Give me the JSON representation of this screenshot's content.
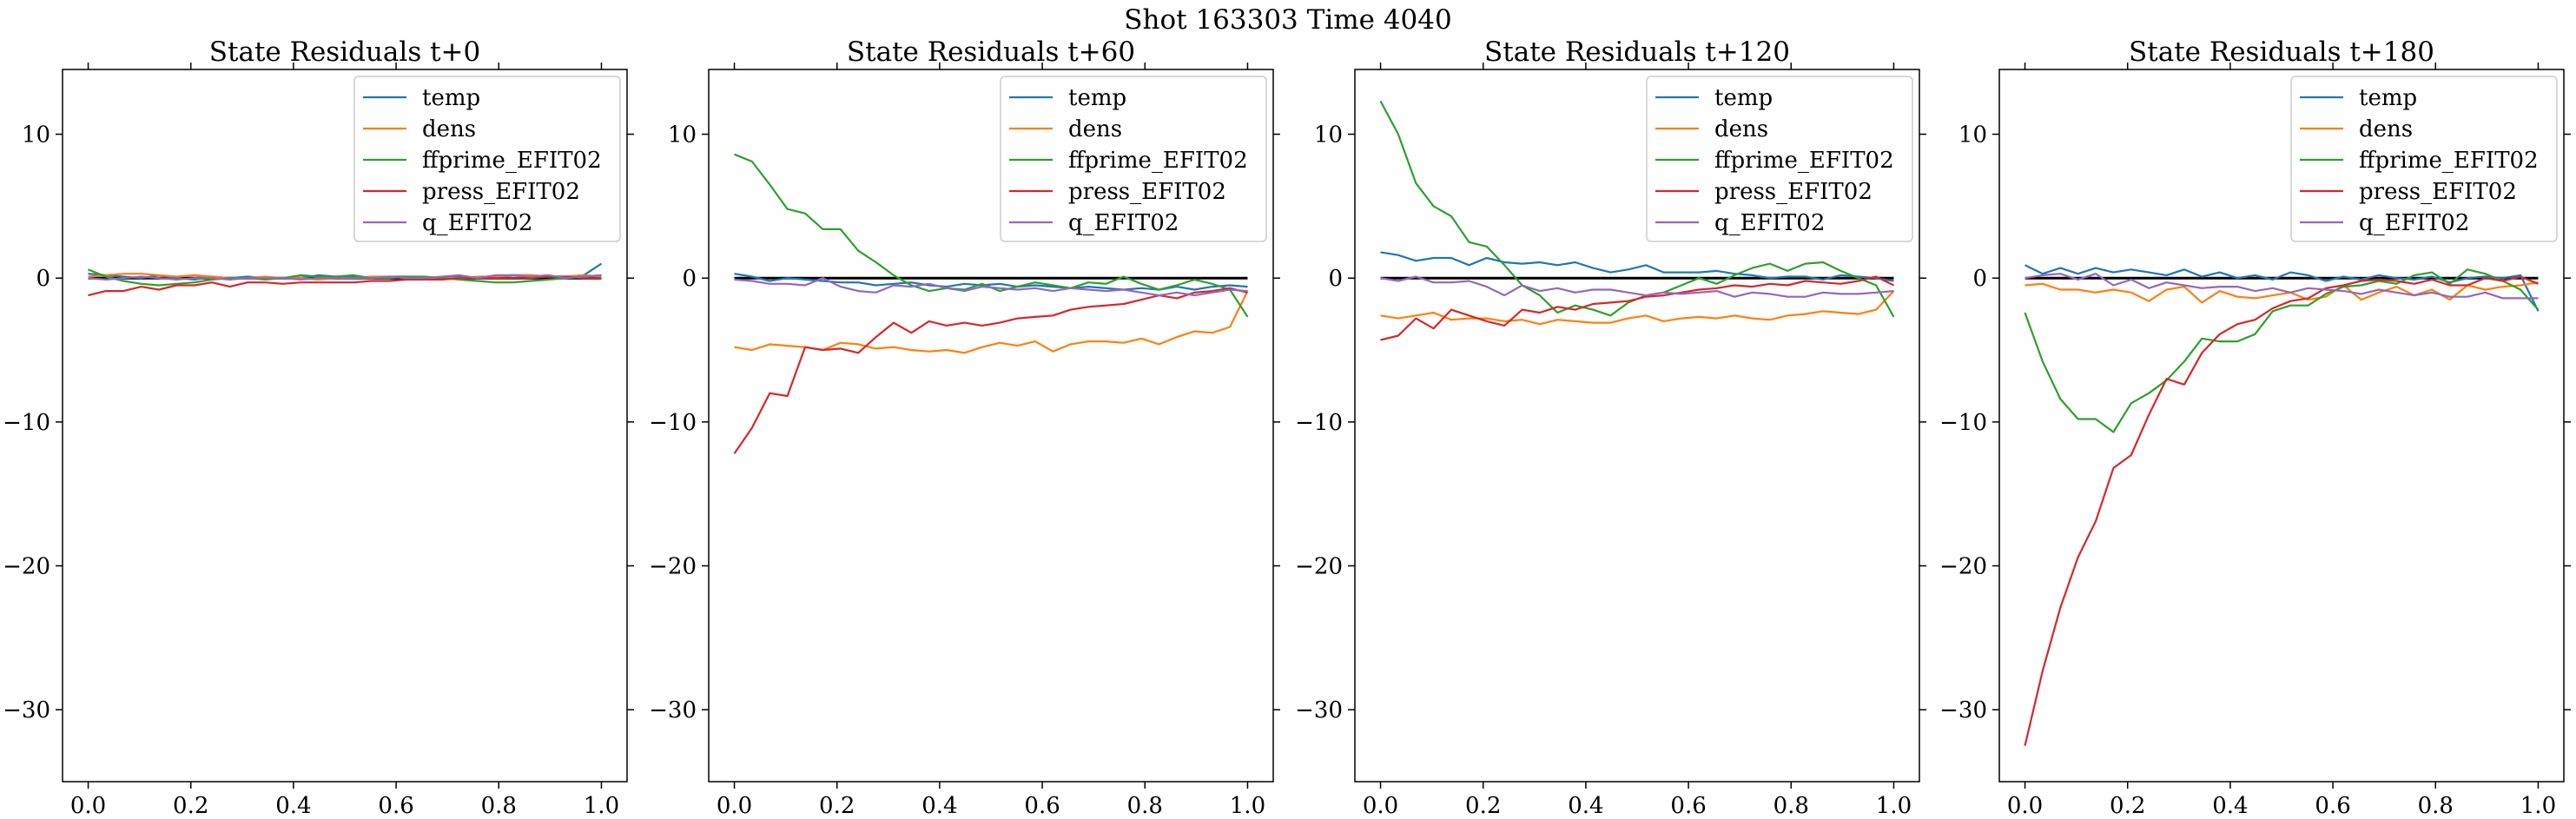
{
  "figure": {
    "suptitle": "Shot 163303   Time 4040"
  },
  "chart_data": [
    {
      "type": "line",
      "title": "State Residuals t+0",
      "xlim": [
        -0.05,
        1.05
      ],
      "ylim": [
        -35,
        14.5
      ],
      "xticks": [
        "0.0",
        "0.2",
        "0.4",
        "0.6",
        "0.8",
        "1.0"
      ],
      "yticks": [
        "10",
        "0",
        "−10",
        "−20",
        "−30"
      ],
      "legend_placement": "upper right",
      "x": [
        0,
        0.0345,
        0.069,
        0.1034,
        0.1379,
        0.1724,
        0.2069,
        0.2414,
        0.2759,
        0.3103,
        0.3448,
        0.3793,
        0.4138,
        0.4483,
        0.4828,
        0.5172,
        0.5517,
        0.5862,
        0.6207,
        0.6552,
        0.6897,
        0.7241,
        0.7586,
        0.7931,
        0.8276,
        0.8621,
        0.8966,
        0.931,
        0.9655,
        1.0
      ],
      "series": [
        {
          "name": "temp",
          "color": "#1f77b4",
          "values": [
            0.3,
            0.2,
            0.1,
            0.0,
            0.2,
            0.0,
            -0.1,
            0.1,
            0.0,
            0.1,
            0.0,
            0.0,
            0.0,
            0.2,
            0.1,
            0.1,
            0.0,
            0.1,
            0.1,
            0.0,
            0.0,
            0.1,
            0.0,
            0.1,
            0.2,
            0.2,
            0.1,
            0.1,
            0.2,
            1.0
          ]
        },
        {
          "name": "dens",
          "color": "#ff7f0e",
          "values": [
            0.1,
            0.2,
            0.3,
            0.3,
            0.2,
            0.1,
            0.2,
            0.1,
            0.0,
            0.0,
            0.1,
            0.0,
            0.0,
            -0.1,
            0.0,
            0.0,
            0.1,
            0.1,
            0.0,
            0.0,
            0.0,
            0.0,
            0.1,
            0.1,
            0.2,
            0.2,
            0.1,
            0.1,
            0.2,
            0.1
          ]
        },
        {
          "name": "ffprime_EFIT02",
          "color": "#2ca02c",
          "values": [
            0.6,
            0.1,
            -0.2,
            -0.4,
            -0.5,
            -0.4,
            -0.3,
            -0.1,
            0.0,
            0.0,
            -0.1,
            0.0,
            0.2,
            0.1,
            0.1,
            0.2,
            0.0,
            0.0,
            0.1,
            0.1,
            0.0,
            -0.1,
            -0.2,
            -0.3,
            -0.3,
            -0.2,
            -0.1,
            0.0,
            0.1,
            0.2
          ]
        },
        {
          "name": "press_EFIT02",
          "color": "#d62728",
          "values": [
            -1.2,
            -0.9,
            -0.9,
            -0.6,
            -0.8,
            -0.5,
            -0.5,
            -0.3,
            -0.6,
            -0.3,
            -0.3,
            -0.4,
            -0.3,
            -0.3,
            -0.3,
            -0.3,
            -0.2,
            -0.2,
            -0.1,
            -0.1,
            -0.1,
            0.0,
            0.0,
            0.0,
            0.0,
            0.0,
            0.1,
            0.1,
            0.0,
            0.0
          ]
        },
        {
          "name": "q_EFIT02",
          "color": "#9467bd",
          "values": [
            0.0,
            -0.1,
            0.0,
            0.1,
            0.0,
            -0.1,
            0.0,
            0.0,
            -0.1,
            0.0,
            0.0,
            0.0,
            -0.1,
            0.0,
            0.0,
            0.0,
            0.0,
            0.1,
            0.0,
            0.0,
            0.1,
            0.2,
            0.0,
            0.2,
            0.2,
            0.1,
            0.2,
            0.0,
            0.1,
            0.2
          ]
        }
      ]
    },
    {
      "type": "line",
      "title": "State Residuals t+60",
      "xlim": [
        -0.05,
        1.05
      ],
      "ylim": [
        -35,
        14.5
      ],
      "xticks": [
        "0.0",
        "0.2",
        "0.4",
        "0.6",
        "0.8",
        "1.0"
      ],
      "yticks": [
        "10",
        "0",
        "−10",
        "−20",
        "−30"
      ],
      "legend_placement": "upper right",
      "x": [
        0,
        0.0345,
        0.069,
        0.1034,
        0.1379,
        0.1724,
        0.2069,
        0.2414,
        0.2759,
        0.3103,
        0.3448,
        0.3793,
        0.4138,
        0.4483,
        0.4828,
        0.5172,
        0.5517,
        0.5862,
        0.6207,
        0.6552,
        0.6897,
        0.7241,
        0.7586,
        0.7931,
        0.8276,
        0.8621,
        0.8966,
        0.931,
        0.9655,
        1.0
      ],
      "series": [
        {
          "name": "temp",
          "color": "#1f77b4",
          "values": [
            0.3,
            0.1,
            -0.2,
            0.0,
            -0.1,
            -0.2,
            -0.3,
            -0.3,
            -0.5,
            -0.4,
            -0.3,
            -0.5,
            -0.6,
            -0.4,
            -0.5,
            -0.4,
            -0.6,
            -0.5,
            -0.6,
            -0.7,
            -0.6,
            -0.7,
            -0.8,
            -0.7,
            -0.8,
            -0.6,
            -0.8,
            -0.6,
            -0.5,
            -0.6
          ]
        },
        {
          "name": "dens",
          "color": "#ff7f0e",
          "values": [
            -4.8,
            -5.0,
            -4.6,
            -4.7,
            -4.8,
            -5.0,
            -4.5,
            -4.6,
            -4.9,
            -4.8,
            -5.0,
            -5.1,
            -5.0,
            -5.2,
            -4.8,
            -4.5,
            -4.7,
            -4.4,
            -5.1,
            -4.6,
            -4.4,
            -4.4,
            -4.5,
            -4.2,
            -4.6,
            -4.1,
            -3.7,
            -3.8,
            -3.4,
            -0.9
          ]
        },
        {
          "name": "ffprime_EFIT02",
          "color": "#2ca02c",
          "values": [
            8.6,
            8.1,
            6.5,
            4.8,
            4.5,
            3.4,
            3.4,
            1.9,
            1.1,
            0.2,
            -0.5,
            -0.9,
            -0.7,
            -0.8,
            -0.4,
            -0.9,
            -0.6,
            -0.3,
            -0.5,
            -0.7,
            -0.3,
            -0.4,
            0.1,
            -0.4,
            -0.8,
            -0.5,
            -0.1,
            -0.4,
            -0.8,
            -2.7
          ]
        },
        {
          "name": "press_EFIT02",
          "color": "#d62728",
          "values": [
            -12.2,
            -10.4,
            -8.0,
            -8.2,
            -4.8,
            -5.0,
            -4.9,
            -5.2,
            -4.1,
            -3.1,
            -3.8,
            -3.0,
            -3.3,
            -3.1,
            -3.3,
            -3.1,
            -2.8,
            -2.7,
            -2.6,
            -2.2,
            -2.0,
            -1.9,
            -1.8,
            -1.5,
            -1.2,
            -1.4,
            -1.0,
            -0.9,
            -0.7,
            -1.0
          ]
        },
        {
          "name": "q_EFIT02",
          "color": "#9467bd",
          "values": [
            -0.1,
            -0.2,
            -0.4,
            -0.4,
            -0.5,
            0.0,
            -0.6,
            -0.9,
            -1.0,
            -0.5,
            -0.6,
            -0.4,
            -0.7,
            -0.9,
            -0.6,
            -0.7,
            -0.8,
            -0.7,
            -0.9,
            -0.7,
            -0.8,
            -0.9,
            -0.8,
            -1.0,
            -1.2,
            -1.0,
            -1.2,
            -1.0,
            -0.8,
            -0.9
          ]
        }
      ]
    },
    {
      "type": "line",
      "title": "State Residuals t+120",
      "xlim": [
        -0.05,
        1.05
      ],
      "ylim": [
        -35,
        14.5
      ],
      "xticks": [
        "0.0",
        "0.2",
        "0.4",
        "0.6",
        "0.8",
        "1.0"
      ],
      "yticks": [
        "10",
        "0",
        "−10",
        "−20",
        "−30"
      ],
      "legend_placement": "upper right",
      "x": [
        0,
        0.0345,
        0.069,
        0.1034,
        0.1379,
        0.1724,
        0.2069,
        0.2414,
        0.2759,
        0.3103,
        0.3448,
        0.3793,
        0.4138,
        0.4483,
        0.4828,
        0.5172,
        0.5517,
        0.5862,
        0.6207,
        0.6552,
        0.6897,
        0.7241,
        0.7586,
        0.7931,
        0.8276,
        0.8621,
        0.8966,
        0.931,
        0.9655,
        1.0
      ],
      "series": [
        {
          "name": "temp",
          "color": "#1f77b4",
          "values": [
            1.8,
            1.6,
            1.2,
            1.4,
            1.4,
            0.9,
            1.4,
            1.1,
            1.0,
            1.1,
            0.9,
            1.1,
            0.7,
            0.4,
            0.6,
            0.9,
            0.4,
            0.4,
            0.4,
            0.5,
            0.3,
            0.2,
            0.0,
            0.1,
            0.1,
            -0.1,
            0.2,
            0.1,
            0.0,
            -0.2
          ]
        },
        {
          "name": "dens",
          "color": "#ff7f0e",
          "values": [
            -2.6,
            -2.8,
            -2.6,
            -2.4,
            -2.9,
            -2.8,
            -2.8,
            -3.0,
            -2.9,
            -3.2,
            -2.9,
            -3.0,
            -3.1,
            -3.1,
            -2.8,
            -2.6,
            -3.0,
            -2.8,
            -2.7,
            -2.8,
            -2.6,
            -2.8,
            -2.9,
            -2.6,
            -2.5,
            -2.3,
            -2.4,
            -2.5,
            -2.2,
            -0.9
          ]
        },
        {
          "name": "ffprime_EFIT02",
          "color": "#2ca02c",
          "values": [
            12.3,
            10.0,
            6.6,
            5.0,
            4.3,
            2.5,
            2.2,
            0.9,
            -0.5,
            -1.2,
            -2.4,
            -1.9,
            -2.2,
            -2.6,
            -1.7,
            -1.2,
            -1.0,
            -0.5,
            0.0,
            -0.4,
            0.2,
            0.7,
            1.0,
            0.5,
            1.0,
            1.1,
            0.5,
            0.0,
            -0.5,
            -2.7
          ]
        },
        {
          "name": "press_EFIT02",
          "color": "#d62728",
          "values": [
            -4.3,
            -4.0,
            -2.8,
            -3.5,
            -2.2,
            -2.6,
            -3.0,
            -3.3,
            -2.2,
            -2.4,
            -2.0,
            -2.2,
            -1.8,
            -1.7,
            -1.6,
            -1.3,
            -1.2,
            -1.0,
            -0.8,
            -0.7,
            -0.5,
            -0.6,
            -0.4,
            -0.5,
            -0.2,
            -0.3,
            -0.4,
            -0.2,
            0.1,
            -0.5
          ]
        },
        {
          "name": "q_EFIT02",
          "color": "#9467bd",
          "values": [
            0.0,
            -0.2,
            0.1,
            -0.3,
            -0.3,
            -0.2,
            -0.6,
            -1.2,
            -0.5,
            -0.9,
            -0.7,
            -1.0,
            -0.8,
            -0.8,
            -1.0,
            -1.2,
            -1.0,
            -1.1,
            -1.0,
            -0.9,
            -1.3,
            -1.0,
            -1.1,
            -1.3,
            -1.3,
            -1.0,
            -1.1,
            -1.1,
            -1.0,
            -0.9
          ]
        }
      ]
    },
    {
      "type": "line",
      "title": "State Residuals t+180",
      "xlim": [
        -0.05,
        1.05
      ],
      "ylim": [
        -35,
        14.5
      ],
      "xticks": [
        "0.0",
        "0.2",
        "0.4",
        "0.6",
        "0.8",
        "1.0"
      ],
      "yticks": [
        "10",
        "0",
        "−10",
        "−20",
        "−30"
      ],
      "legend_placement": "upper right",
      "x": [
        0,
        0.0345,
        0.069,
        0.1034,
        0.1379,
        0.1724,
        0.2069,
        0.2414,
        0.2759,
        0.3103,
        0.3448,
        0.3793,
        0.4138,
        0.4483,
        0.4828,
        0.5172,
        0.5517,
        0.5862,
        0.6207,
        0.6552,
        0.6897,
        0.7241,
        0.7586,
        0.7931,
        0.8276,
        0.8621,
        0.8966,
        0.931,
        0.9655,
        1.0
      ],
      "series": [
        {
          "name": "temp",
          "color": "#1f77b4",
          "values": [
            0.9,
            0.3,
            0.7,
            0.3,
            0.7,
            0.4,
            0.6,
            0.4,
            0.2,
            0.6,
            0.1,
            0.4,
            0.0,
            0.2,
            -0.1,
            0.4,
            0.2,
            -0.2,
            0.1,
            -0.1,
            0.2,
            0.0,
            -0.1,
            0.1,
            -0.3,
            0.0,
            0.1,
            0.0,
            0.2,
            -2.3
          ]
        },
        {
          "name": "dens",
          "color": "#ff7f0e",
          "values": [
            -0.5,
            -0.4,
            -0.8,
            -0.8,
            -1.0,
            -0.8,
            -1.0,
            -1.6,
            -0.8,
            -0.6,
            -1.7,
            -0.9,
            -1.3,
            -1.4,
            -1.2,
            -1.0,
            -1.5,
            -1.3,
            -0.5,
            -1.5,
            -1.0,
            -0.6,
            -1.2,
            -0.8,
            -1.5,
            -0.5,
            -0.8,
            -0.6,
            -0.5,
            -0.3
          ]
        },
        {
          "name": "ffprime_EFIT02",
          "color": "#2ca02c",
          "values": [
            -2.4,
            -5.8,
            -8.4,
            -9.8,
            -9.8,
            -10.7,
            -8.7,
            -8.0,
            -7.1,
            -5.8,
            -4.2,
            -4.4,
            -4.4,
            -3.9,
            -2.3,
            -1.9,
            -1.9,
            -1.1,
            -0.6,
            -0.5,
            -0.2,
            -0.4,
            0.2,
            0.4,
            -0.4,
            0.6,
            0.3,
            -0.2,
            -0.8,
            -2.2
          ]
        },
        {
          "name": "press_EFIT02",
          "color": "#d62728",
          "values": [
            -32.5,
            -27.3,
            -22.9,
            -19.4,
            -16.9,
            -13.2,
            -12.3,
            -9.5,
            -7.0,
            -7.4,
            -5.2,
            -3.9,
            -3.2,
            -2.9,
            -2.1,
            -1.6,
            -1.4,
            -0.7,
            -0.5,
            -0.2,
            -0.1,
            -0.2,
            -0.4,
            -0.1,
            -0.5,
            -0.5,
            0.0,
            -0.2,
            0.1,
            -0.4
          ]
        },
        {
          "name": "q_EFIT02",
          "color": "#9467bd",
          "values": [
            0.0,
            0.2,
            0.3,
            -0.1,
            0.3,
            -0.5,
            -0.1,
            -0.7,
            -0.3,
            -0.5,
            -0.7,
            -0.6,
            -0.6,
            -0.9,
            -0.7,
            -1.0,
            -0.7,
            -0.8,
            -0.9,
            -1.1,
            -0.8,
            -1.0,
            -1.2,
            -1.0,
            -1.3,
            -1.3,
            -1.0,
            -1.4,
            -1.4,
            -1.4
          ]
        }
      ]
    }
  ]
}
